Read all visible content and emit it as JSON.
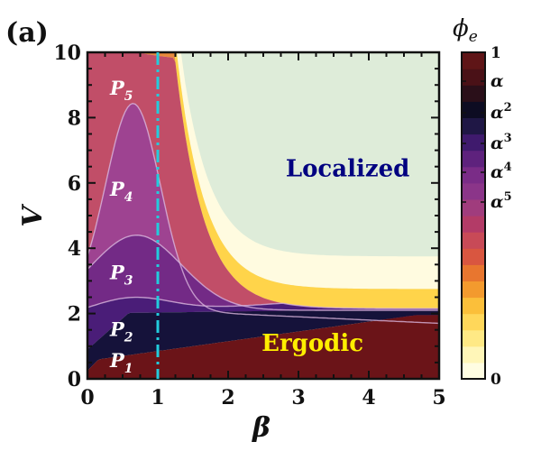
{
  "panel_label": "(a)",
  "chart_data": {
    "type": "heatmap",
    "xlabel": "β",
    "ylabel": "V",
    "xlim": [
      0,
      5
    ],
    "ylim": [
      0,
      10
    ],
    "x_ticks": [
      "0",
      "1",
      "2",
      "3",
      "4",
      "5"
    ],
    "y_ticks": [
      "0",
      "2",
      "4",
      "6",
      "8",
      "10"
    ],
    "vertical_line": {
      "x": 1,
      "style": "dash-dot",
      "color": "#22ccdd"
    },
    "regions": [
      {
        "name": "Localized",
        "label": "Localized",
        "color": "#000080",
        "x": 3.7,
        "y": 6.2
      },
      {
        "name": "Ergodic",
        "label": "Ergodic",
        "color": "#ffee00",
        "x": 3.2,
        "y": 0.85
      }
    ],
    "phase_labels": [
      {
        "base": "P",
        "sub": "5",
        "x": 0.5,
        "y": 8.9
      },
      {
        "base": "P",
        "sub": "4",
        "x": 0.5,
        "y": 5.8
      },
      {
        "base": "P",
        "sub": "3",
        "x": 0.5,
        "y": 3.25
      },
      {
        "base": "P",
        "sub": "2",
        "x": 0.5,
        "y": 1.5
      },
      {
        "base": "P",
        "sub": "1",
        "x": 0.5,
        "y": 0.55
      }
    ],
    "colorbar": {
      "title": "ϕe",
      "title_base": "ϕ",
      "title_sub": "e",
      "top_label": "1",
      "bottom_label": "0",
      "alpha_labels": [
        {
          "base": "α",
          "exp": ""
        },
        {
          "base": "α",
          "exp": "2"
        },
        {
          "base": "α",
          "exp": "3"
        },
        {
          "base": "α",
          "exp": "4"
        },
        {
          "base": "α",
          "exp": "5"
        }
      ]
    }
  }
}
